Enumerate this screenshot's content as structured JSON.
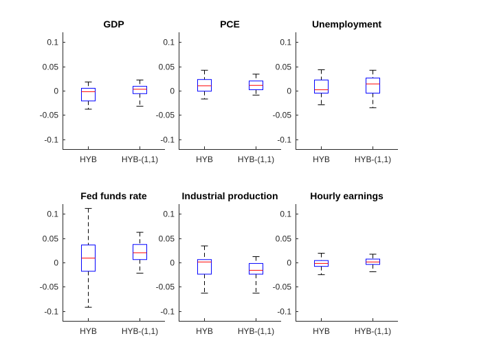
{
  "figure": {
    "name": "Boxplots of forecast errors"
  },
  "colors": {
    "box": "#0000ff",
    "median": "#ff0000",
    "whisker": "#000000",
    "axis": "#262626"
  },
  "chart_data": [
    {
      "type": "box",
      "title": "GDP",
      "categories": [
        "HYB",
        "HYB-(1,1)"
      ],
      "ylim": [
        -0.12,
        0.12
      ],
      "yticks": [
        -0.1,
        -0.05,
        0,
        0.05,
        0.1
      ],
      "ytick_labels": [
        "-0.1",
        "-0.05",
        "0",
        "0.05",
        "0.1"
      ],
      "boxes": [
        {
          "whisker_low": -0.038,
          "q1": -0.021,
          "median": -0.002,
          "q3": 0.005,
          "whisker_high": 0.018
        },
        {
          "whisker_low": -0.032,
          "q1": -0.006,
          "median": 0.003,
          "q3": 0.009,
          "whisker_high": 0.022
        }
      ]
    },
    {
      "type": "box",
      "title": "PCE",
      "categories": [
        "HYB",
        "HYB-(1,1)"
      ],
      "ylim": [
        -0.12,
        0.12
      ],
      "yticks": [
        -0.1,
        -0.05,
        0,
        0.05,
        0.1
      ],
      "ytick_labels": [
        "-0.1",
        "-0.05",
        "0",
        "0.05",
        "0.1"
      ],
      "boxes": [
        {
          "whisker_low": -0.017,
          "q1": -0.001,
          "median": 0.01,
          "q3": 0.023,
          "whisker_high": 0.042
        },
        {
          "whisker_low": -0.009,
          "q1": 0.002,
          "median": 0.011,
          "q3": 0.02,
          "whisker_high": 0.034
        }
      ]
    },
    {
      "type": "box",
      "title": "Unemployment",
      "categories": [
        "HYB",
        "HYB-(1,1)"
      ],
      "ylim": [
        -0.12,
        0.12
      ],
      "yticks": [
        -0.1,
        -0.05,
        0,
        0.05,
        0.1
      ],
      "ytick_labels": [
        "-0.1",
        "-0.05",
        "0",
        "0.05",
        "0.1"
      ],
      "boxes": [
        {
          "whisker_low": -0.029,
          "q1": -0.005,
          "median": 0.002,
          "q3": 0.022,
          "whisker_high": 0.043
        },
        {
          "whisker_low": -0.035,
          "q1": -0.005,
          "median": 0.014,
          "q3": 0.026,
          "whisker_high": 0.042
        }
      ]
    },
    {
      "type": "box",
      "title": "Fed funds rate",
      "categories": [
        "HYB",
        "HYB-(1,1)"
      ],
      "ylim": [
        -0.12,
        0.12
      ],
      "yticks": [
        -0.1,
        -0.05,
        0,
        0.05,
        0.1
      ],
      "ytick_labels": [
        "-0.1",
        "-0.05",
        "0",
        "0.05",
        "0.1"
      ],
      "boxes": [
        {
          "whisker_low": -0.092,
          "q1": -0.018,
          "median": 0.009,
          "q3": 0.036,
          "whisker_high": 0.111
        },
        {
          "whisker_low": -0.022,
          "q1": 0.006,
          "median": 0.02,
          "q3": 0.037,
          "whisker_high": 0.062
        }
      ]
    },
    {
      "type": "box",
      "title": "Industrial production",
      "categories": [
        "HYB",
        "HYB-(1,1)"
      ],
      "ylim": [
        -0.12,
        0.12
      ],
      "yticks": [
        -0.1,
        -0.05,
        0,
        0.05,
        0.1
      ],
      "ytick_labels": [
        "-0.1",
        "-0.05",
        "0",
        "0.05",
        "0.1"
      ],
      "boxes": [
        {
          "whisker_low": -0.063,
          "q1": -0.024,
          "median": 0.001,
          "q3": 0.006,
          "whisker_high": 0.034
        },
        {
          "whisker_low": -0.063,
          "q1": -0.024,
          "median": -0.016,
          "q3": -0.002,
          "whisker_high": 0.012
        }
      ]
    },
    {
      "type": "box",
      "title": "Hourly earnings",
      "categories": [
        "HYB",
        "HYB-(1,1)"
      ],
      "ylim": [
        -0.12,
        0.12
      ],
      "yticks": [
        -0.1,
        -0.05,
        0,
        0.05,
        0.1
      ],
      "ytick_labels": [
        "-0.1",
        "-0.05",
        "0",
        "0.05",
        "0.1"
      ],
      "boxes": [
        {
          "whisker_low": -0.025,
          "q1": -0.008,
          "median": -0.002,
          "q3": 0.004,
          "whisker_high": 0.019
        },
        {
          "whisker_low": -0.019,
          "q1": -0.004,
          "median": 0.001,
          "q3": 0.007,
          "whisker_high": 0.017
        }
      ]
    }
  ]
}
